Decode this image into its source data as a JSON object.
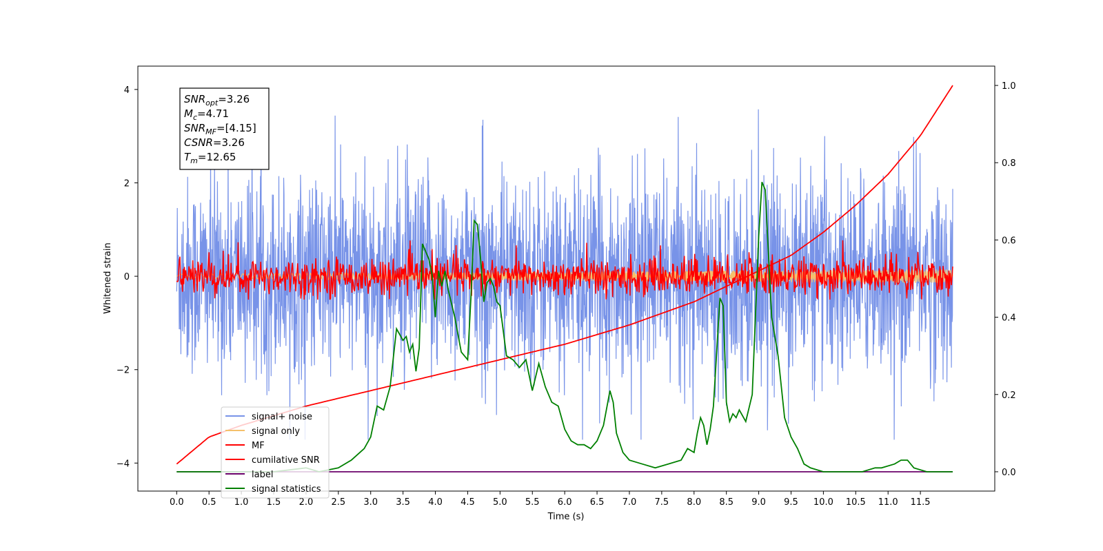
{
  "chart_data": {
    "type": "line",
    "xlabel": "Time (s)",
    "ylabel_left": "Whitened strain",
    "ylabel_right": "",
    "xlim": [
      -0.6,
      12.65
    ],
    "ylim_left": [
      -4.6,
      4.5
    ],
    "ylim_right": [
      -0.05,
      1.05
    ],
    "x_ticks": [
      "0.0",
      "0.5",
      "1.0",
      "1.5",
      "2.0",
      "2.5",
      "3.0",
      "3.5",
      "4.0",
      "4.5",
      "5.0",
      "5.5",
      "6.0",
      "6.5",
      "7.0",
      "7.5",
      "8.0",
      "8.5",
      "9.0",
      "9.5",
      "10.0",
      "10.5",
      "11.0",
      "11.5"
    ],
    "y_ticks_left": [
      "4",
      "2",
      "0",
      "−2",
      "−4"
    ],
    "y_ticks_right": [
      "1.0",
      "0.8",
      "0.6",
      "0.4",
      "0.2",
      "0.0"
    ],
    "grid": false,
    "legend_position": "lower-left",
    "annotation": {
      "lines": [
        {
          "main": "SNR",
          "sub": "opt",
          "rest": "=3.26"
        },
        {
          "main": "M",
          "sub": "c",
          "rest": "=4.71"
        },
        {
          "main": "SNR",
          "sub": "MF",
          "rest": "=[4.15]"
        },
        {
          "main": "CSNR",
          "sub": "",
          "rest": "=3.26"
        },
        {
          "main": "T",
          "sub": "m",
          "rest": "=12.65"
        }
      ]
    },
    "series": [
      {
        "name": "signal+ noise",
        "color": "#7893e8",
        "axis": "left",
        "kind": "noise",
        "approx_range": [
          -3.5,
          4.0
        ]
      },
      {
        "name": "signal only",
        "color": "#f5c06b",
        "axis": "left",
        "kind": "chirp",
        "approx_amplitude": 0.15
      },
      {
        "name": "MF",
        "color": "#ff0000",
        "axis": "left",
        "kind": "noise",
        "approx_range": [
          -0.5,
          1.0
        ]
      },
      {
        "name": "cumilative SNR",
        "color": "#ff0000",
        "axis": "right",
        "x": [
          0.0,
          0.5,
          1.0,
          2.0,
          3.0,
          4.0,
          5.0,
          6.0,
          7.0,
          8.0,
          8.5,
          9.0,
          9.5,
          10.0,
          10.5,
          11.0,
          11.5,
          12.0
        ],
        "y": [
          0.02,
          0.09,
          0.12,
          0.17,
          0.21,
          0.25,
          0.29,
          0.33,
          0.38,
          0.44,
          0.48,
          0.52,
          0.56,
          0.62,
          0.69,
          0.77,
          0.87,
          1.0
        ]
      },
      {
        "name": "label",
        "color": "#6a006a",
        "axis": "right",
        "x": [
          0.0,
          12.0
        ],
        "y": [
          0.0,
          0.0
        ]
      },
      {
        "name": "signal statistics",
        "color": "#008000",
        "axis": "right",
        "x": [
          0.0,
          0.5,
          1.0,
          1.5,
          2.0,
          2.2,
          2.5,
          2.7,
          2.9,
          3.0,
          3.1,
          3.2,
          3.3,
          3.4,
          3.5,
          3.55,
          3.6,
          3.65,
          3.7,
          3.75,
          3.8,
          3.85,
          3.9,
          3.95,
          4.0,
          4.05,
          4.1,
          4.15,
          4.2,
          4.3,
          4.4,
          4.5,
          4.55,
          4.6,
          4.65,
          4.7,
          4.75,
          4.8,
          4.85,
          4.9,
          4.95,
          5.0,
          5.1,
          5.2,
          5.3,
          5.4,
          5.5,
          5.6,
          5.7,
          5.8,
          5.9,
          6.0,
          6.1,
          6.2,
          6.3,
          6.4,
          6.5,
          6.6,
          6.7,
          6.75,
          6.8,
          6.9,
          7.0,
          7.2,
          7.4,
          7.6,
          7.8,
          7.9,
          8.0,
          8.05,
          8.1,
          8.15,
          8.2,
          8.25,
          8.3,
          8.4,
          8.45,
          8.5,
          8.55,
          8.6,
          8.65,
          8.7,
          8.8,
          8.9,
          9.0,
          9.05,
          9.1,
          9.2,
          9.3,
          9.4,
          9.5,
          9.6,
          9.7,
          9.8,
          9.9,
          10.0,
          10.3,
          10.6,
          10.8,
          10.9,
          11.1,
          11.2,
          11.3,
          11.4,
          11.6,
          11.8,
          12.0
        ],
        "y": [
          0.0,
          0.0,
          0.0,
          0.0,
          0.01,
          0.0,
          0.01,
          0.03,
          0.06,
          0.09,
          0.17,
          0.16,
          0.22,
          0.37,
          0.34,
          0.35,
          0.31,
          0.33,
          0.26,
          0.32,
          0.59,
          0.57,
          0.55,
          0.51,
          0.4,
          0.52,
          0.48,
          0.52,
          0.47,
          0.4,
          0.31,
          0.29,
          0.45,
          0.65,
          0.64,
          0.55,
          0.44,
          0.49,
          0.5,
          0.48,
          0.44,
          0.43,
          0.3,
          0.29,
          0.27,
          0.29,
          0.21,
          0.28,
          0.22,
          0.18,
          0.17,
          0.11,
          0.08,
          0.07,
          0.07,
          0.06,
          0.08,
          0.12,
          0.21,
          0.18,
          0.1,
          0.05,
          0.03,
          0.02,
          0.01,
          0.02,
          0.03,
          0.06,
          0.05,
          0.1,
          0.14,
          0.12,
          0.07,
          0.11,
          0.17,
          0.45,
          0.43,
          0.18,
          0.13,
          0.15,
          0.14,
          0.16,
          0.13,
          0.2,
          0.61,
          0.75,
          0.73,
          0.4,
          0.3,
          0.14,
          0.09,
          0.06,
          0.02,
          0.01,
          0.005,
          0.0,
          0.0,
          0.0,
          0.01,
          0.01,
          0.02,
          0.03,
          0.03,
          0.01,
          0.0,
          0.0,
          0.0
        ]
      }
    ]
  }
}
